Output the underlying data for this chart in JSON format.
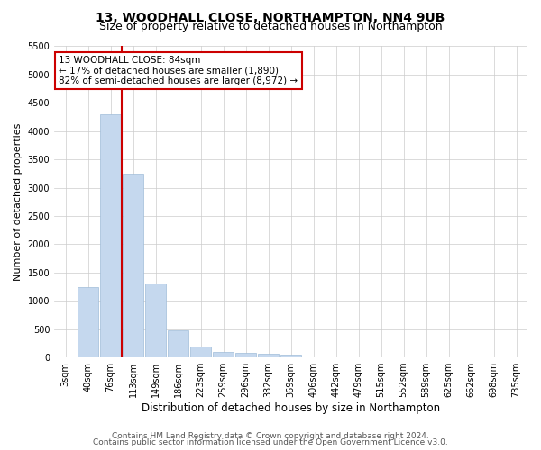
{
  "title1": "13, WOODHALL CLOSE, NORTHAMPTON, NN4 9UB",
  "title2": "Size of property relative to detached houses in Northampton",
  "xlabel": "Distribution of detached houses by size in Northampton",
  "ylabel": "Number of detached properties",
  "categories": [
    "3sqm",
    "40sqm",
    "76sqm",
    "113sqm",
    "149sqm",
    "186sqm",
    "223sqm",
    "259sqm",
    "296sqm",
    "332sqm",
    "369sqm",
    "406sqm",
    "442sqm",
    "479sqm",
    "515sqm",
    "552sqm",
    "589sqm",
    "625sqm",
    "662sqm",
    "698sqm",
    "735sqm"
  ],
  "values": [
    0,
    1250,
    4300,
    3250,
    1300,
    475,
    200,
    100,
    75,
    60,
    50,
    0,
    0,
    0,
    0,
    0,
    0,
    0,
    0,
    0,
    0
  ],
  "bar_color": "#c5d8ee",
  "bar_edge_color": "#a0bcd8",
  "vline_x_index": 2.5,
  "vline_color": "#cc0000",
  "annotation_text": "13 WOODHALL CLOSE: 84sqm\n← 17% of detached houses are smaller (1,890)\n82% of semi-detached houses are larger (8,972) →",
  "annotation_box_color": "#ffffff",
  "annotation_box_edge": "#cc0000",
  "ylim": [
    0,
    5500
  ],
  "yticks": [
    0,
    500,
    1000,
    1500,
    2000,
    2500,
    3000,
    3500,
    4000,
    4500,
    5000,
    5500
  ],
  "footer1": "Contains HM Land Registry data © Crown copyright and database right 2024.",
  "footer2": "Contains public sector information licensed under the Open Government Licence v3.0.",
  "bg_color": "#ffffff",
  "grid_color": "#cccccc",
  "title1_fontsize": 10,
  "title2_fontsize": 9,
  "xlabel_fontsize": 8.5,
  "ylabel_fontsize": 8,
  "tick_fontsize": 7,
  "annotation_fontsize": 7.5,
  "footer_fontsize": 6.5
}
